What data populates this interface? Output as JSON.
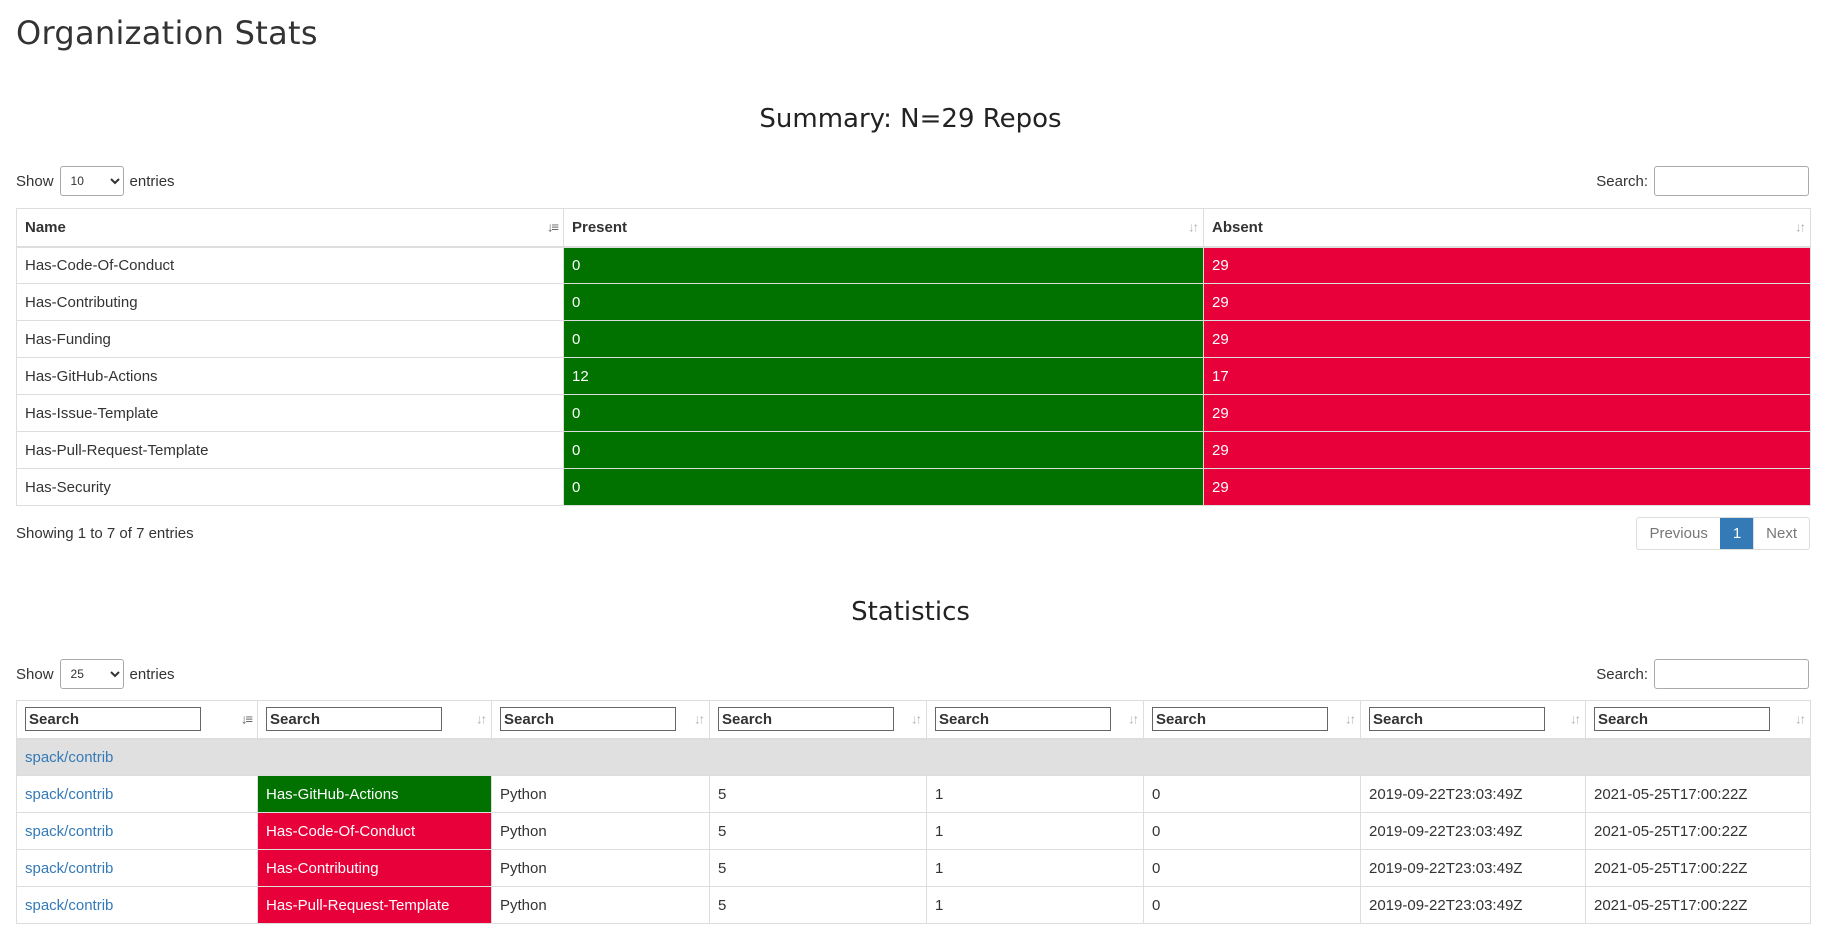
{
  "page": {
    "title": "Organization Stats"
  },
  "summary": {
    "title": "Summary: N=29 Repos",
    "show_label": "Show",
    "entries_label": "entries",
    "length_value": "10",
    "search_label": "Search:",
    "columns": [
      "Name",
      "Present",
      "Absent"
    ],
    "rows": [
      {
        "name": "Has-Code-Of-Conduct",
        "present": "0",
        "absent": "29"
      },
      {
        "name": "Has-Contributing",
        "present": "0",
        "absent": "29"
      },
      {
        "name": "Has-Funding",
        "present": "0",
        "absent": "29"
      },
      {
        "name": "Has-GitHub-Actions",
        "present": "12",
        "absent": "17"
      },
      {
        "name": "Has-Issue-Template",
        "present": "0",
        "absent": "29"
      },
      {
        "name": "Has-Pull-Request-Template",
        "present": "0",
        "absent": "29"
      },
      {
        "name": "Has-Security",
        "present": "0",
        "absent": "29"
      }
    ],
    "info": "Showing 1 to 7 of 7 entries",
    "pager": {
      "previous": "Previous",
      "current": "1",
      "next": "Next"
    },
    "colors": {
      "present": "#017100",
      "absent": "#e8003b"
    }
  },
  "statistics": {
    "title": "Statistics",
    "show_label": "Show",
    "entries_label": "entries",
    "length_value": "25",
    "search_label": "Search:",
    "filter_placeholder": "Search",
    "group_label": "spack/contrib",
    "rows": [
      {
        "repo": "spack/contrib",
        "category": "Has-GitHub-Actions",
        "status": "green",
        "language": "Python",
        "c1": "5",
        "c2": "1",
        "c3": "0",
        "created": "2019-09-22T23:03:49Z",
        "updated": "2021-05-25T17:00:22Z"
      },
      {
        "repo": "spack/contrib",
        "category": "Has-Code-Of-Conduct",
        "status": "red",
        "language": "Python",
        "c1": "5",
        "c2": "1",
        "c3": "0",
        "created": "2019-09-22T23:03:49Z",
        "updated": "2021-05-25T17:00:22Z"
      },
      {
        "repo": "spack/contrib",
        "category": "Has-Contributing",
        "status": "red",
        "language": "Python",
        "c1": "5",
        "c2": "1",
        "c3": "0",
        "created": "2019-09-22T23:03:49Z",
        "updated": "2021-05-25T17:00:22Z"
      },
      {
        "repo": "spack/contrib",
        "category": "Has-Pull-Request-Template",
        "status": "red",
        "language": "Python",
        "c1": "5",
        "c2": "1",
        "c3": "0",
        "created": "2019-09-22T23:03:49Z",
        "updated": "2021-05-25T17:00:22Z"
      }
    ]
  }
}
